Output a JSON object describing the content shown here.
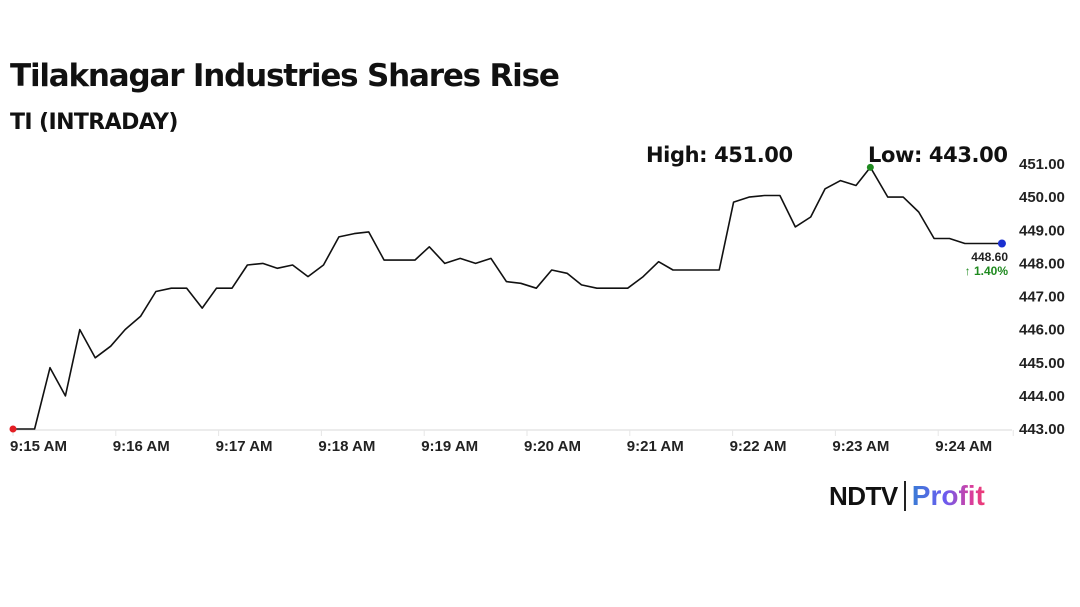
{
  "header": {
    "title": "Tilaknagar Industries Shares Rise",
    "subtitle": "TI (INTRADAY)"
  },
  "stats": {
    "high_label": "High: 451.00",
    "low_label": "Low: 443.00",
    "last_price": "448.60",
    "change": "↑ 1.40%",
    "change_color": "#1f8a1f"
  },
  "branding": {
    "ndtv": "NDTV",
    "profit": "Profit"
  },
  "colors": {
    "line": "#111111",
    "start_marker": "#e31e24",
    "high_marker": "#1f8a1f",
    "end_marker": "#1a2fd0",
    "grid": "#e6e6e6"
  },
  "chart_data": {
    "type": "line",
    "title": "Tilaknagar Industries Shares Rise",
    "subtitle": "TI (INTRADAY)",
    "xlabel": "",
    "ylabel": "",
    "ylim": [
      443,
      451
    ],
    "yticks": [
      "451.00",
      "450.00",
      "449.00",
      "448.00",
      "447.00",
      "446.00",
      "445.00",
      "444.00",
      "443.00"
    ],
    "xticks": [
      "9:15 AM",
      "9:16 AM",
      "9:17 AM",
      "9:18 AM",
      "9:19 AM",
      "9:20 AM",
      "9:21 AM",
      "9:22 AM",
      "9:23 AM",
      "9:24 AM"
    ],
    "grid": false,
    "legend": "none",
    "annotations": [
      "High: 451.00",
      "Low: 443.00",
      "448.60",
      "1.40%"
    ],
    "series": [
      {
        "name": "TI",
        "minutes_from_915": [
          0,
          0.21,
          0.36,
          0.51,
          0.65,
          0.8,
          0.95,
          1.09,
          1.24,
          1.39,
          1.54,
          1.69,
          1.84,
          1.98,
          2.13,
          2.28,
          2.43,
          2.57,
          2.72,
          2.87,
          3.02,
          3.17,
          3.32,
          3.46,
          3.61,
          3.76,
          3.91,
          4.05,
          4.2,
          4.35,
          4.5,
          4.65,
          4.8,
          4.94,
          5.09,
          5.24,
          5.39,
          5.53,
          5.68,
          5.83,
          5.98,
          6.13,
          6.28,
          6.42,
          6.57,
          6.72,
          6.87,
          7.01,
          7.16,
          7.31,
          7.46,
          7.61,
          7.76,
          7.9,
          8.05,
          8.2,
          8.34,
          8.51,
          8.66,
          8.81,
          8.96,
          9.11,
          9.26,
          9.4,
          9.62
        ],
        "values": [
          443.0,
          443.0,
          444.85,
          444.0,
          446.0,
          445.15,
          445.5,
          446.0,
          446.4,
          447.15,
          447.25,
          447.25,
          446.65,
          447.25,
          447.25,
          447.95,
          448.0,
          447.85,
          447.95,
          447.6,
          447.95,
          448.8,
          448.9,
          448.95,
          448.1,
          448.1,
          448.1,
          448.5,
          448.0,
          448.15,
          448.0,
          448.15,
          447.45,
          447.4,
          447.25,
          447.8,
          447.7,
          447.35,
          447.25,
          447.25,
          447.25,
          447.6,
          448.05,
          447.8,
          447.8,
          447.8,
          447.8,
          449.85,
          450.0,
          450.05,
          450.05,
          449.1,
          449.4,
          450.25,
          450.5,
          450.35,
          450.9,
          450.0,
          450.0,
          449.55,
          448.75,
          448.75,
          448.6,
          448.6,
          448.6
        ]
      }
    ]
  }
}
